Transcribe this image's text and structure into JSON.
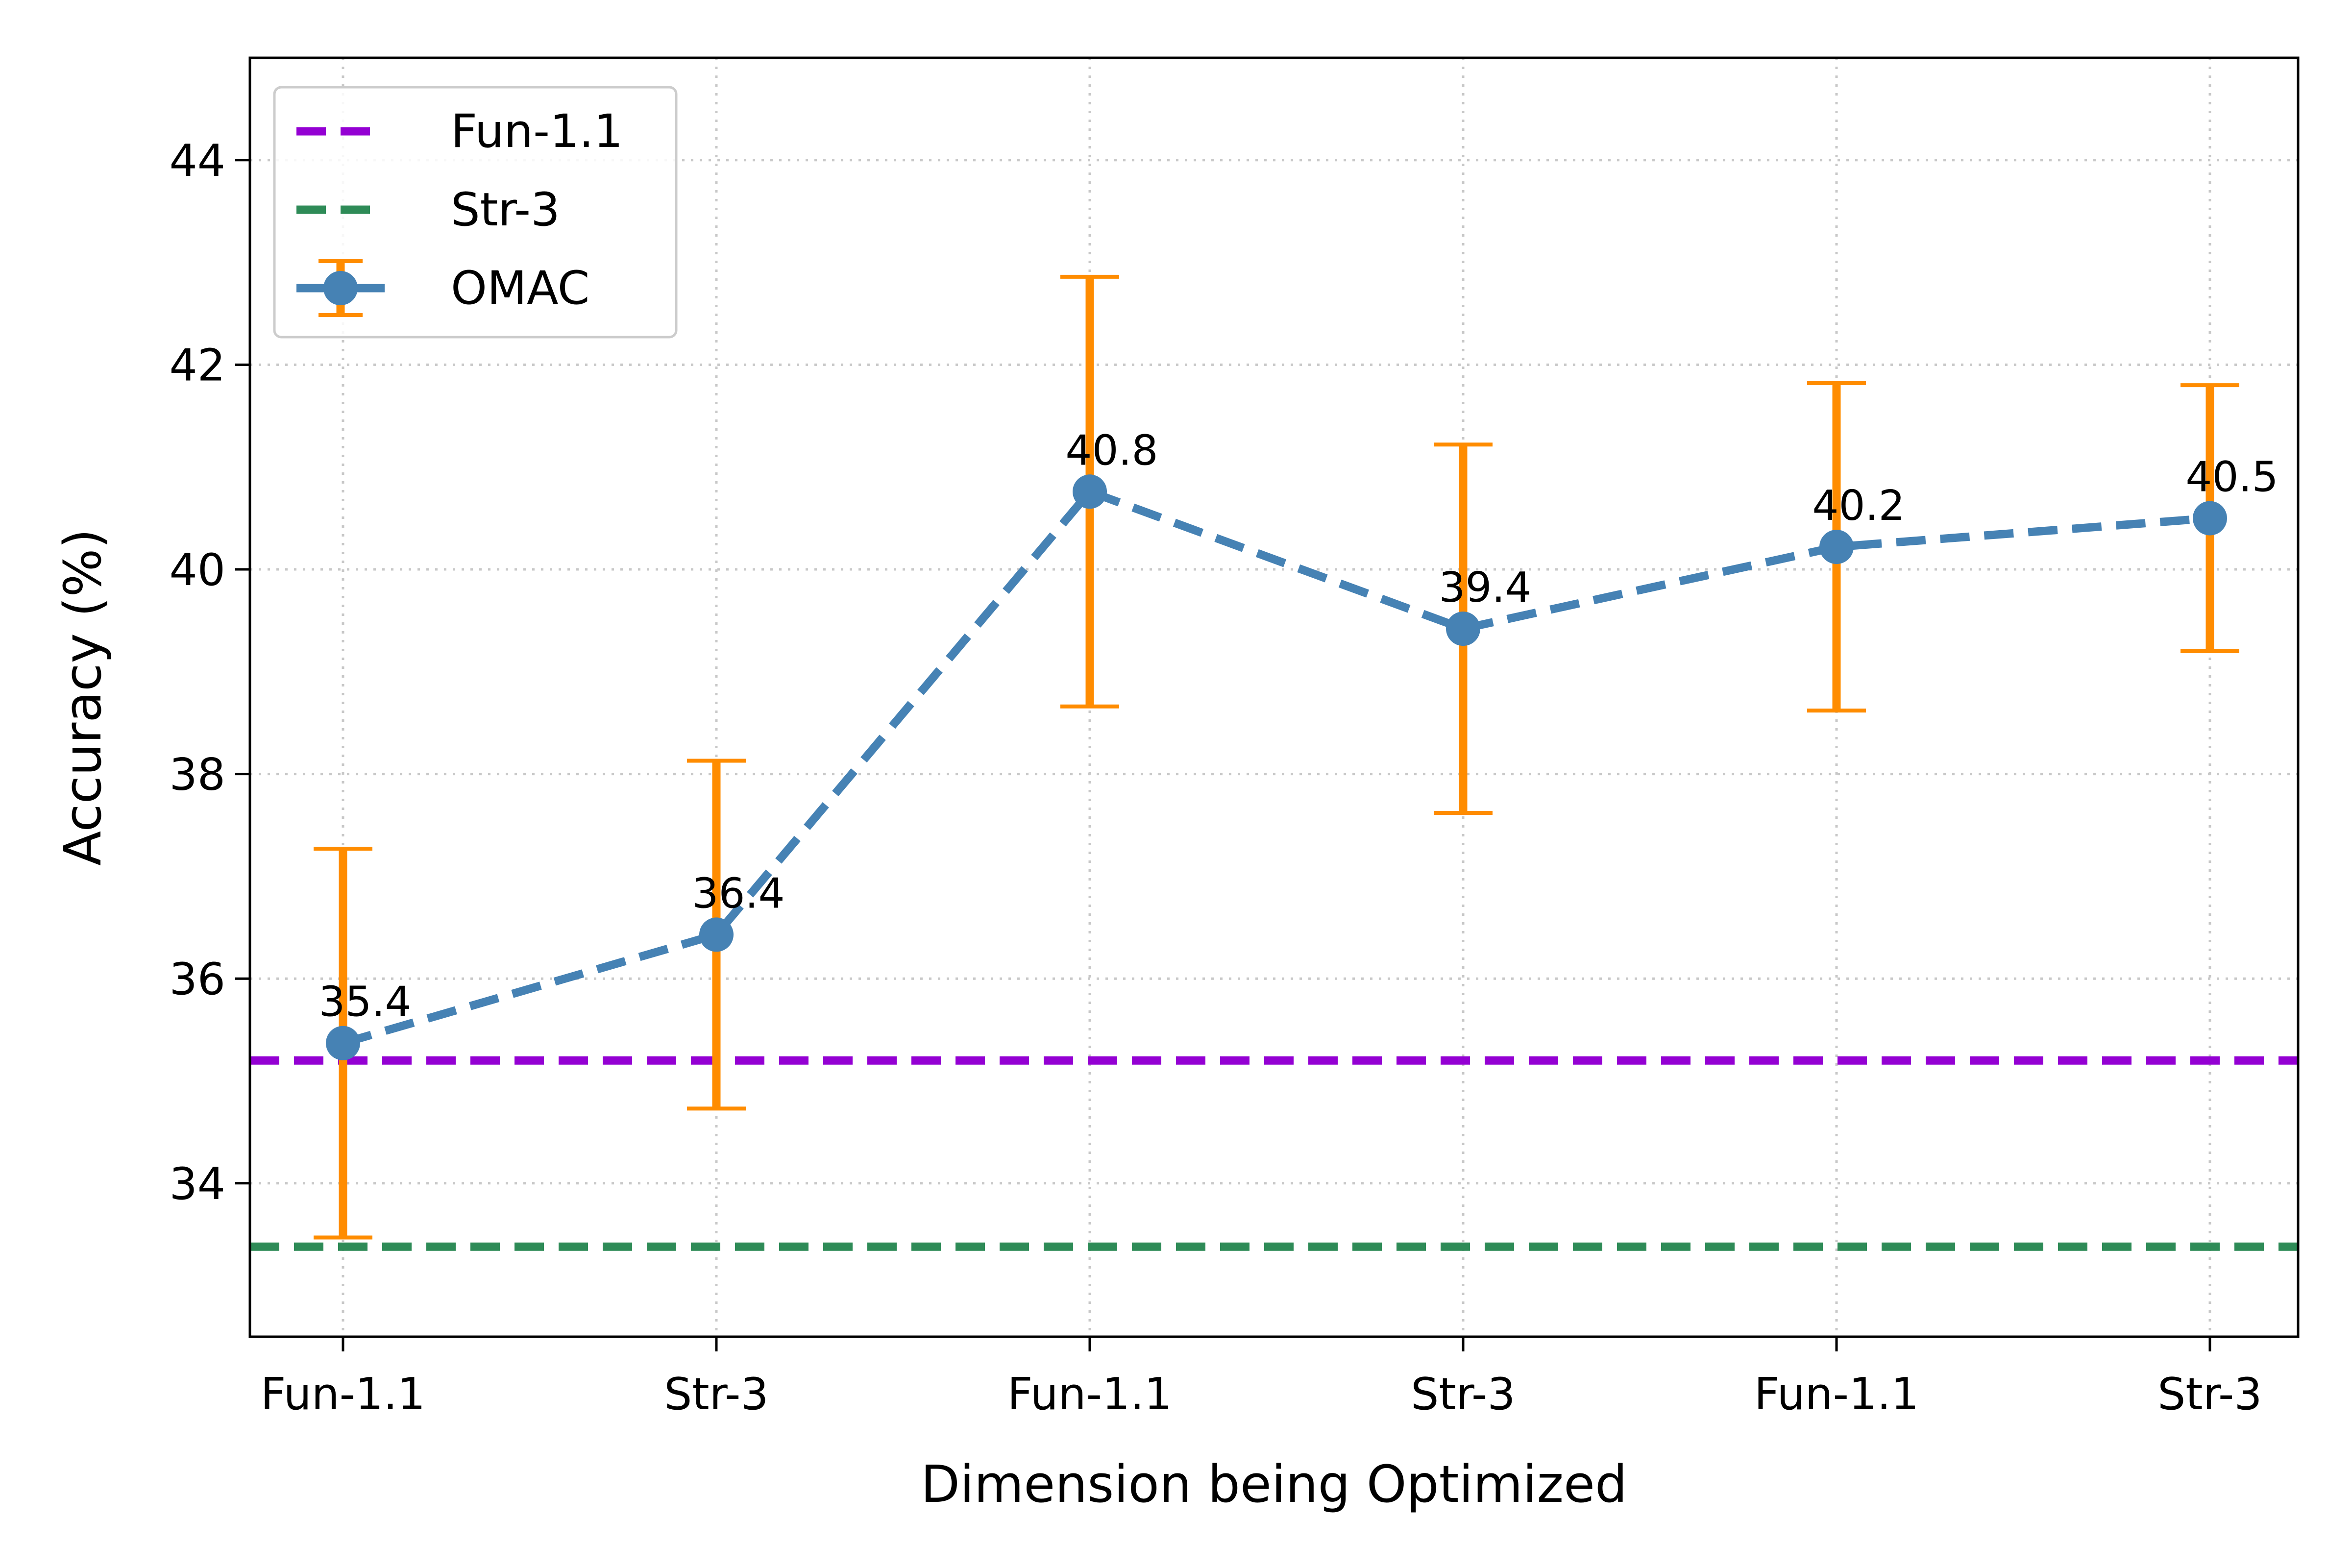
{
  "chart_data": {
    "type": "line",
    "title": "",
    "xlabel": "Dimension being Optimized",
    "ylabel": "Accuracy (%)",
    "categories": [
      "Fun-1.1",
      "Str-3",
      "Fun-1.1",
      "Str-3",
      "Fun-1.1",
      "Str-3"
    ],
    "ylim": [
      32.5,
      45.0
    ],
    "yticks": [
      34,
      36,
      38,
      40,
      42,
      44
    ],
    "grid": true,
    "legend_position": "top-left",
    "series": [
      {
        "name": "OMAC",
        "style": "dashed-line-with-markers",
        "color": "#4682B4",
        "error_color": "#FF8C00",
        "values": [
          35.37,
          36.43,
          40.76,
          39.42,
          40.22,
          40.5
        ],
        "labels": [
          "35.4",
          "36.4",
          "40.8",
          "39.4",
          "40.2",
          "40.5"
        ],
        "error": [
          1.9,
          1.7,
          2.1,
          1.8,
          1.6,
          1.3
        ]
      }
    ],
    "reference_lines": [
      {
        "name": "Fun-1.1",
        "value": 35.2,
        "color": "#9400D3",
        "style": "dashed"
      },
      {
        "name": "Str-3",
        "value": 33.38,
        "color": "#2E8B57",
        "style": "dashed"
      }
    ]
  }
}
